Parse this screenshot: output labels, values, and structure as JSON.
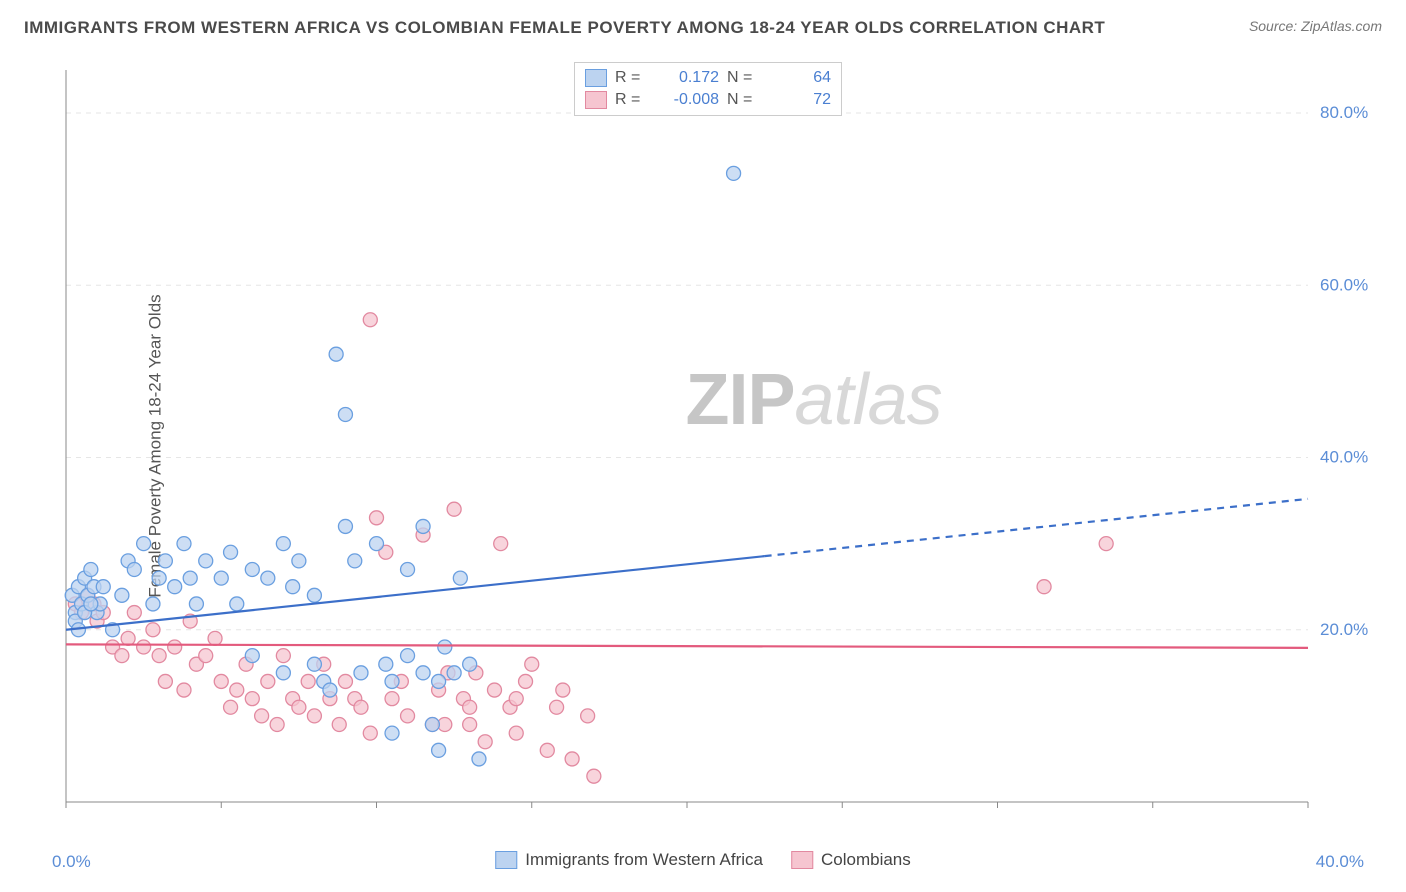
{
  "title": "IMMIGRANTS FROM WESTERN AFRICA VS COLOMBIAN FEMALE POVERTY AMONG 18-24 YEAR OLDS CORRELATION CHART",
  "source": "Source: ZipAtlas.com",
  "y_axis_label": "Female Poverty Among 18-24 Year Olds",
  "watermark_zip": "ZIP",
  "watermark_atlas": "atlas",
  "x_tick_left": "0.0%",
  "x_tick_right": "40.0%",
  "chart": {
    "type": "scatter",
    "xlim": [
      0,
      40
    ],
    "ylim": [
      0,
      85
    ],
    "y_ticks": [
      20,
      40,
      60,
      80
    ],
    "y_tick_labels": [
      "20.0%",
      "40.0%",
      "60.0%",
      "80.0%"
    ],
    "x_ticks": [
      0,
      5,
      10,
      15,
      20,
      25,
      30,
      35,
      40
    ],
    "background_color": "#ffffff",
    "grid_color": "#e6e6e6",
    "marker_radius": 7,
    "marker_stroke_width": 1.3,
    "series": [
      {
        "name": "Immigrants from Western Africa",
        "fill": "#bcd3f0",
        "stroke": "#6a9fe0",
        "line_color": "#3c6fc9",
        "line_width": 2.2,
        "trend": {
          "intercept": 20.0,
          "slope": 0.38,
          "solid_until_x": 22.5
        },
        "R": 0.172,
        "N": 64,
        "points": [
          [
            0.2,
            24
          ],
          [
            0.3,
            22
          ],
          [
            0.4,
            25
          ],
          [
            0.5,
            23
          ],
          [
            0.6,
            26
          ],
          [
            0.7,
            24
          ],
          [
            0.8,
            27
          ],
          [
            0.9,
            25
          ],
          [
            1.0,
            22
          ],
          [
            1.1,
            23
          ],
          [
            0.3,
            21
          ],
          [
            0.4,
            20
          ],
          [
            0.6,
            22
          ],
          [
            0.8,
            23
          ],
          [
            1.2,
            25
          ],
          [
            1.5,
            20
          ],
          [
            1.8,
            24
          ],
          [
            2.0,
            28
          ],
          [
            2.2,
            27
          ],
          [
            2.5,
            30
          ],
          [
            2.8,
            23
          ],
          [
            3.0,
            26
          ],
          [
            3.2,
            28
          ],
          [
            3.5,
            25
          ],
          [
            3.8,
            30
          ],
          [
            4.0,
            26
          ],
          [
            4.2,
            23
          ],
          [
            4.5,
            28
          ],
          [
            5.0,
            26
          ],
          [
            5.3,
            29
          ],
          [
            5.5,
            23
          ],
          [
            6.0,
            27
          ],
          [
            6.5,
            26
          ],
          [
            7.0,
            30
          ],
          [
            7.3,
            25
          ],
          [
            7.5,
            28
          ],
          [
            8.0,
            24
          ],
          [
            8.3,
            14
          ],
          [
            8.5,
            13
          ],
          [
            9.0,
            32
          ],
          [
            9.3,
            28
          ],
          [
            9.5,
            15
          ],
          [
            8.7,
            52
          ],
          [
            9.0,
            45
          ],
          [
            10.0,
            30
          ],
          [
            10.3,
            16
          ],
          [
            10.5,
            8
          ],
          [
            11.0,
            27
          ],
          [
            11.5,
            15
          ],
          [
            11.8,
            9
          ],
          [
            11.5,
            32
          ],
          [
            12.0,
            14
          ],
          [
            12.0,
            6
          ],
          [
            12.5,
            15
          ],
          [
            12.7,
            26
          ],
          [
            13.0,
            16
          ],
          [
            13.3,
            5
          ],
          [
            10.5,
            14
          ],
          [
            11.0,
            17
          ],
          [
            12.2,
            18
          ],
          [
            8.0,
            16
          ],
          [
            7.0,
            15
          ],
          [
            6.0,
            17
          ],
          [
            21.5,
            73
          ]
        ]
      },
      {
        "name": "Colombians",
        "fill": "#f6c5d0",
        "stroke": "#e289a0",
        "line_color": "#e35a7d",
        "line_width": 2.2,
        "trend": {
          "intercept": 18.3,
          "slope": -0.01,
          "solid_until_x": 40
        },
        "R": -0.008,
        "N": 72,
        "points": [
          [
            0.3,
            23
          ],
          [
            0.5,
            22
          ],
          [
            0.7,
            24
          ],
          [
            0.9,
            23
          ],
          [
            1.0,
            21
          ],
          [
            1.2,
            22
          ],
          [
            1.5,
            18
          ],
          [
            1.8,
            17
          ],
          [
            2.0,
            19
          ],
          [
            2.2,
            22
          ],
          [
            2.5,
            18
          ],
          [
            2.8,
            20
          ],
          [
            3.0,
            17
          ],
          [
            3.2,
            14
          ],
          [
            3.5,
            18
          ],
          [
            3.8,
            13
          ],
          [
            4.0,
            21
          ],
          [
            4.2,
            16
          ],
          [
            4.5,
            17
          ],
          [
            4.8,
            19
          ],
          [
            5.0,
            14
          ],
          [
            5.3,
            11
          ],
          [
            5.5,
            13
          ],
          [
            5.8,
            16
          ],
          [
            6.0,
            12
          ],
          [
            6.3,
            10
          ],
          [
            6.5,
            14
          ],
          [
            6.8,
            9
          ],
          [
            7.0,
            17
          ],
          [
            7.3,
            12
          ],
          [
            7.5,
            11
          ],
          [
            7.8,
            14
          ],
          [
            8.0,
            10
          ],
          [
            8.3,
            16
          ],
          [
            8.5,
            12
          ],
          [
            8.8,
            9
          ],
          [
            9.0,
            14
          ],
          [
            9.3,
            12
          ],
          [
            9.5,
            11
          ],
          [
            9.8,
            8
          ],
          [
            10.0,
            33
          ],
          [
            10.3,
            29
          ],
          [
            10.5,
            12
          ],
          [
            10.8,
            14
          ],
          [
            11.0,
            10
          ],
          [
            11.5,
            31
          ],
          [
            11.8,
            9
          ],
          [
            12.0,
            13
          ],
          [
            12.3,
            15
          ],
          [
            12.5,
            34
          ],
          [
            12.8,
            12
          ],
          [
            13.0,
            9
          ],
          [
            13.2,
            15
          ],
          [
            13.5,
            7
          ],
          [
            13.8,
            13
          ],
          [
            14.0,
            30
          ],
          [
            14.3,
            11
          ],
          [
            14.5,
            8
          ],
          [
            14.8,
            14
          ],
          [
            15.0,
            16
          ],
          [
            15.5,
            6
          ],
          [
            15.8,
            11
          ],
          [
            16.0,
            13
          ],
          [
            16.3,
            5
          ],
          [
            16.8,
            10
          ],
          [
            17.0,
            3
          ],
          [
            9.8,
            56
          ],
          [
            31.5,
            25
          ],
          [
            33.5,
            30
          ],
          [
            12.2,
            9
          ],
          [
            13.0,
            11
          ],
          [
            14.5,
            12
          ]
        ]
      }
    ]
  },
  "legend_top": {
    "rows": [
      {
        "swatch_fill": "#bcd3f0",
        "swatch_stroke": "#6a9fe0",
        "R_label": "R =",
        "R_val": "0.172",
        "N_label": "N =",
        "N_val": "64"
      },
      {
        "swatch_fill": "#f6c5d0",
        "swatch_stroke": "#e289a0",
        "R_label": "R =",
        "R_val": "-0.008",
        "N_label": "N =",
        "N_val": "72"
      }
    ]
  },
  "legend_bottom": {
    "items": [
      {
        "swatch_fill": "#bcd3f0",
        "swatch_stroke": "#6a9fe0",
        "label": "Immigrants from Western Africa"
      },
      {
        "swatch_fill": "#f6c5d0",
        "swatch_stroke": "#e289a0",
        "label": "Colombians"
      }
    ]
  }
}
